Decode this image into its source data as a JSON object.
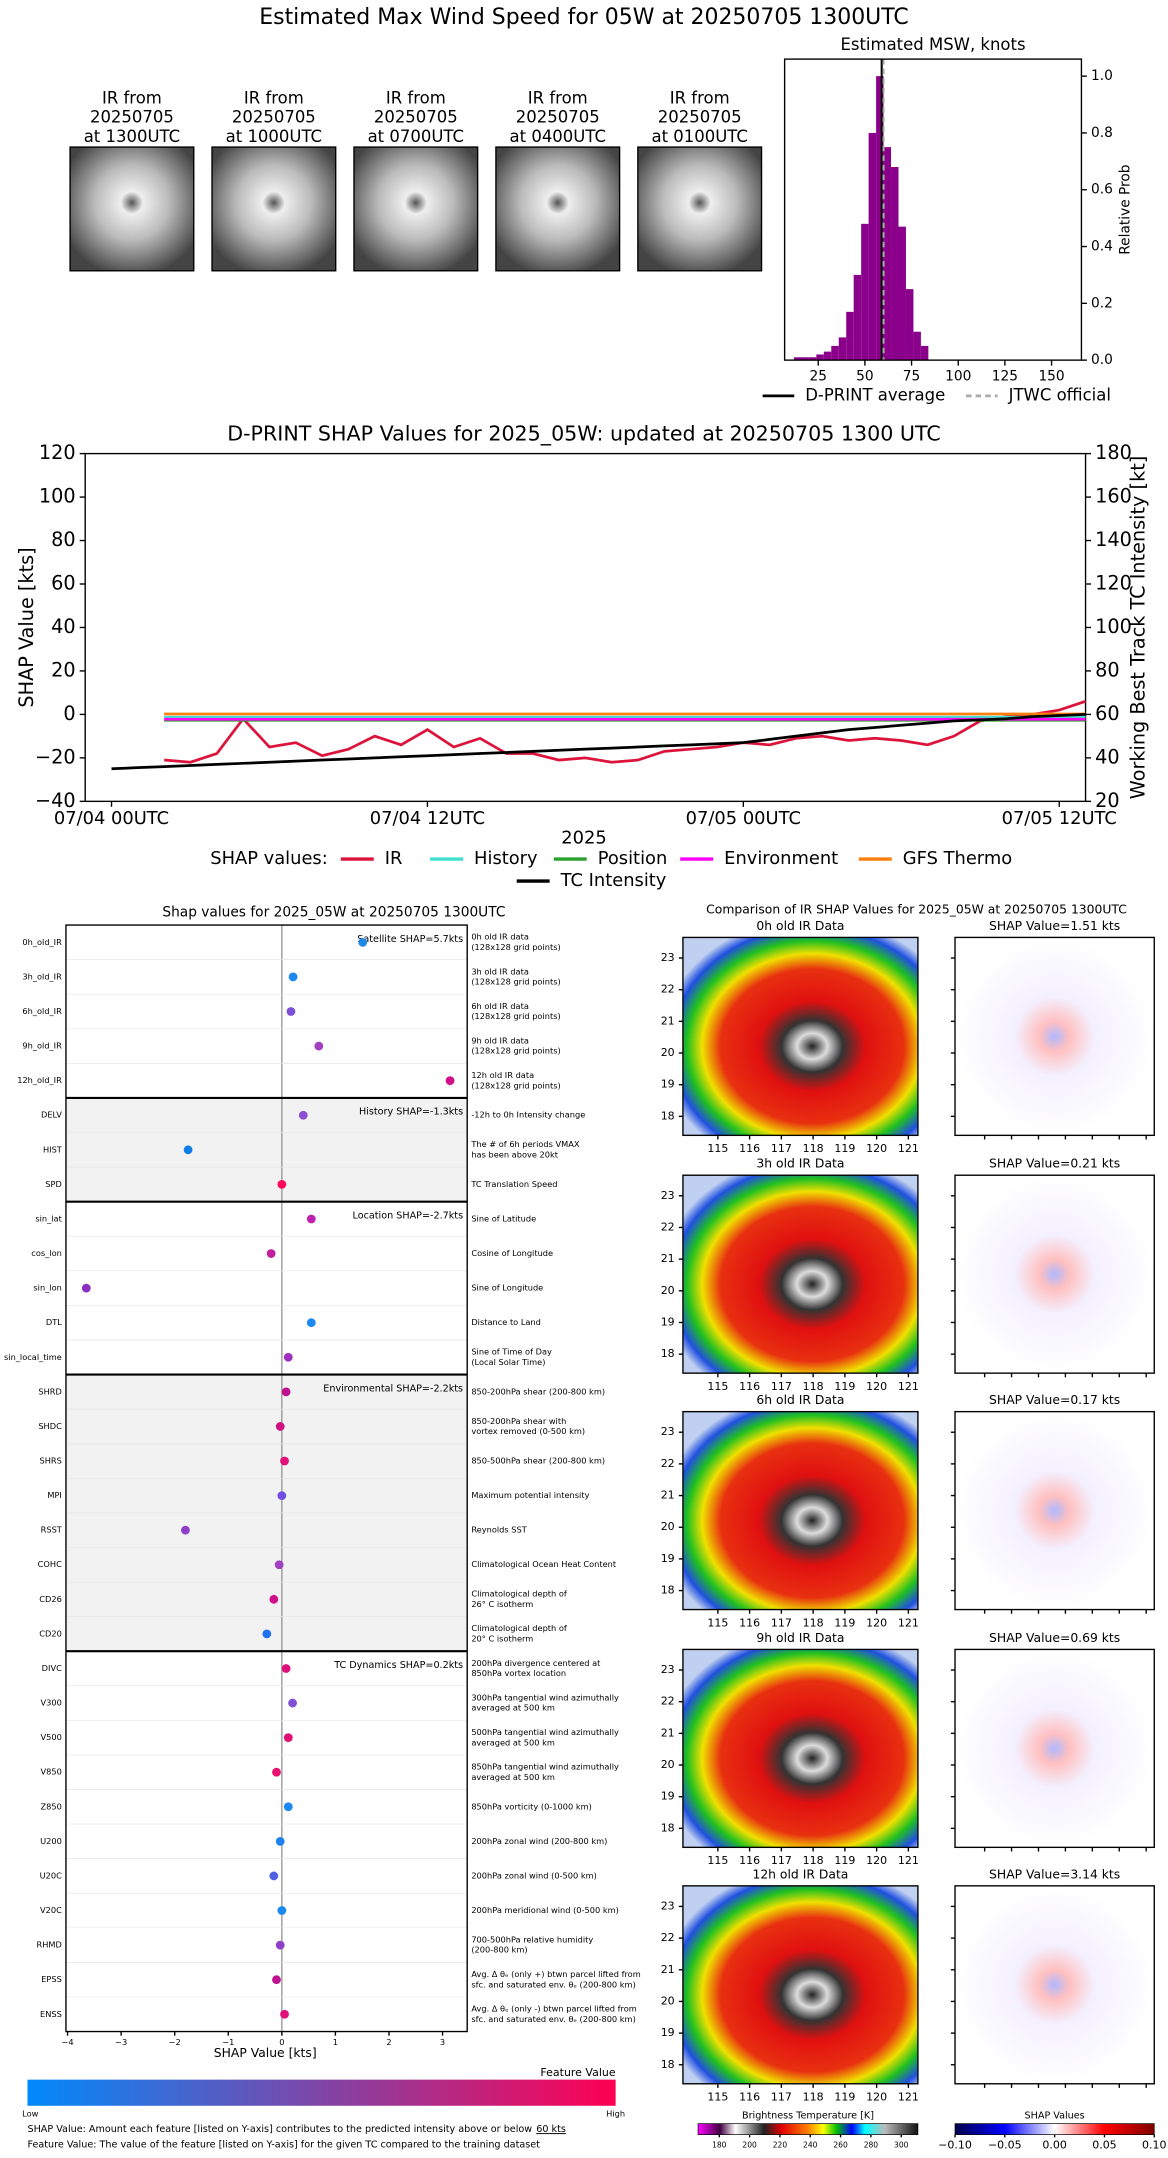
{
  "title": "Estimated Max Wind Speed for 05W at 20250705 1300UTC",
  "ir_thumbnails": [
    [
      "IR from",
      "20250705",
      "at 1300UTC"
    ],
    [
      "IR from",
      "20250705",
      "at 1000UTC"
    ],
    [
      "IR from",
      "20250705",
      "at 0700UTC"
    ],
    [
      "IR from",
      "20250705",
      "at 0400UTC"
    ],
    [
      "IR from",
      "20250705",
      "at 0100UTC"
    ]
  ],
  "chart_data": [
    {
      "type": "histogram",
      "title": "Estimated MSW, knots",
      "bins": [
        12,
        16,
        20,
        24,
        28,
        32,
        36,
        40,
        44,
        48,
        52,
        56,
        60,
        64,
        68,
        72,
        76,
        80,
        84
      ],
      "values": [
        0.01,
        0.01,
        0.01,
        0.02,
        0.03,
        0.05,
        0.08,
        0.17,
        0.3,
        0.48,
        0.8,
        1.0,
        0.75,
        0.68,
        0.47,
        0.25,
        0.1,
        0.05
      ],
      "color": "#8b008b",
      "xlim": [
        7,
        166
      ],
      "xticks": [
        25,
        50,
        75,
        100,
        125,
        150
      ],
      "ylim": [
        0,
        1.06
      ],
      "yticks": [
        {
          "value": 0,
          "label": "0.0"
        },
        {
          "value": 0.2,
          "label": "0.2"
        },
        {
          "value": 0.4,
          "label": "0.4"
        },
        {
          "value": 0.6,
          "label": "0.6"
        },
        {
          "value": 0.8,
          "label": "0.8"
        },
        {
          "value": 1.0,
          "label": "1.0"
        }
      ],
      "ylabel": "Relative Prob",
      "lines": [
        {
          "name": "D-PRINT average",
          "value": 59,
          "color": "#000000",
          "style": "solid"
        },
        {
          "name": "JTWC official",
          "value": 60,
          "color": "#aaaaaa",
          "style": "dashed"
        }
      ]
    },
    {
      "type": "line",
      "title": "D-PRINT SHAP Values for 2025_05W: updated at 20250705 1300 UTC",
      "ylabel": "SHAP Value [kts]",
      "y2label": "Working Best Track TC Intensity [kt]",
      "xlabel": "2025",
      "legend_title": "SHAP values:",
      "x": [
        "07/04 00UTC",
        "07/04 01UTC",
        "07/04 02UTC",
        "07/04 03UTC",
        "07/04 04UTC",
        "07/04 05UTC",
        "07/04 06UTC",
        "07/04 07UTC",
        "07/04 08UTC",
        "07/04 09UTC",
        "07/04 10UTC",
        "07/04 11UTC",
        "07/04 12UTC",
        "07/04 13UTC",
        "07/04 14UTC",
        "07/04 15UTC",
        "07/04 16UTC",
        "07/04 17UTC",
        "07/04 18UTC",
        "07/04 19UTC",
        "07/04 20UTC",
        "07/04 21UTC",
        "07/04 22UTC",
        "07/04 23UTC",
        "07/05 00UTC",
        "07/05 01UTC",
        "07/05 02UTC",
        "07/05 03UTC",
        "07/05 04UTC",
        "07/05 05UTC",
        "07/05 06UTC",
        "07/05 07UTC",
        "07/05 08UTC",
        "07/05 09UTC",
        "07/05 10UTC",
        "07/05 11UTC",
        "07/05 12UTC",
        "07/05 13UTC"
      ],
      "xlim": [
        "07/03 23UTC",
        "07/05 13UTC"
      ],
      "xticks": [
        "07/04 00UTC",
        "07/04 12UTC",
        "07/05 00UTC",
        "07/05 12UTC"
      ],
      "ylim": [
        -40,
        120
      ],
      "yticks": [
        {
          "value": -40,
          "label": "−40"
        },
        {
          "value": -20,
          "label": "−20"
        },
        0,
        20,
        40,
        60,
        80,
        100,
        120
      ],
      "y2lim": [
        20,
        180
      ],
      "y2ticks": [
        20,
        40,
        60,
        80,
        100,
        120,
        140,
        160,
        180
      ],
      "series": [
        {
          "name": "IR",
          "color": "#dc143c",
          "values": [
            null,
            null,
            -21,
            -22,
            -18,
            -2,
            -15,
            -13,
            -19,
            -16,
            -10,
            -14,
            -7,
            -15,
            -11,
            -18,
            -18,
            -21,
            -20,
            -22,
            -21,
            -17,
            -16,
            -15,
            -13,
            -14,
            -11,
            -10,
            -12,
            -11,
            -12,
            -14,
            -10,
            -3,
            -1,
            0,
            2,
            6
          ]
        },
        {
          "name": "History",
          "color": "#40e0d0",
          "values": [
            null,
            null,
            -1.3,
            -1.3,
            -1.3,
            -1.3,
            -1.3,
            -1.3,
            -1.3,
            -1.3,
            -1.3,
            -1.3,
            -1.3,
            -1.3,
            -1.3,
            -1.3,
            -1.3,
            -1.3,
            -1.3,
            -1.3,
            -1.3,
            -1.3,
            -1.3,
            -1.3,
            -1.3,
            -1.3,
            -1.3,
            -1.3,
            -1.3,
            -1.3,
            -1.3,
            -1.3,
            -1.3,
            -1.3,
            -1.3,
            -1.3,
            -1.3,
            -1.3
          ]
        },
        {
          "name": "Position",
          "color": "#2ca02c",
          "values": [
            null,
            null,
            -2.7,
            -2.7,
            -2.7,
            -2.7,
            -2.7,
            -2.7,
            -2.7,
            -2.7,
            -2.7,
            -2.7,
            -2.7,
            -2.7,
            -2.7,
            -2.7,
            -2.7,
            -2.7,
            -2.7,
            -2.7,
            -2.7,
            -2.7,
            -2.7,
            -2.7,
            -2.7,
            -2.7,
            -2.7,
            -2.7,
            -2.7,
            -2.7,
            -2.7,
            -2.7,
            -2.7,
            -2.7,
            -2.7,
            -2.7,
            -2.7,
            -2.7
          ]
        },
        {
          "name": "Environment",
          "color": "#ff00ff",
          "values": [
            null,
            null,
            -2.2,
            -2.2,
            -2.2,
            -2.2,
            -2.2,
            -2.2,
            -2.2,
            -2.2,
            -2.2,
            -2.2,
            -2.2,
            -2.2,
            -2.2,
            -2.2,
            -2.2,
            -2.2,
            -2.2,
            -2.2,
            -2.2,
            -2.2,
            -2.2,
            -2.2,
            -2.2,
            -2.2,
            -2.2,
            -2.2,
            -2.2,
            -2.2,
            -2.2,
            -2.2,
            -2.2,
            -2.2,
            -2.2,
            -2.2,
            -2.2,
            -2.2
          ]
        },
        {
          "name": "GFS Thermo",
          "color": "#ff7f0e",
          "values": [
            null,
            null,
            0.2,
            0.2,
            0.2,
            0.2,
            0.2,
            0.2,
            0.2,
            0.2,
            0.2,
            0.2,
            0.2,
            0.2,
            0.2,
            0.2,
            0.2,
            0.2,
            0.2,
            0.2,
            0.2,
            0.2,
            0.2,
            0.2,
            0.2,
            0.2,
            0.2,
            0.2,
            0.2,
            0.2,
            0.2,
            0.2,
            0.2,
            0.2,
            0.2,
            0.2,
            0.2,
            0.2
          ]
        },
        {
          "name": "TC Intensity",
          "color": "#000000",
          "axis": "y2",
          "values": [
            35,
            35.5,
            36,
            36.5,
            37,
            37.5,
            38,
            38.5,
            39,
            39.5,
            40,
            40.5,
            41,
            41.5,
            42,
            42.5,
            43,
            43.5,
            44,
            44.5,
            45,
            45.5,
            46,
            46.5,
            47,
            48.5,
            50,
            51.5,
            53,
            54,
            55,
            56,
            57,
            57.5,
            58,
            59,
            59.5,
            60
          ]
        }
      ]
    },
    {
      "type": "dot",
      "title": "Shap values for 2025_05W at 20250705 1300UTC",
      "xlabel": "SHAP Value [kts]",
      "xlim": [
        -4.03,
        3.46
      ],
      "xticks": [
        {
          "value": -4,
          "label": "−4"
        },
        {
          "value": -3,
          "label": "−3"
        },
        {
          "value": -2,
          "label": "−2"
        },
        {
          "value": -1,
          "label": "−1"
        },
        0,
        1,
        2,
        3
      ],
      "groups": [
        {
          "label": "Satellite SHAP=5.7kts",
          "features": [
            {
              "name": "0h_old_IR",
              "value": 1.51,
              "color": "#1e88e5",
              "description": [
                "0h old IR data",
                "(128x128 grid points)"
              ]
            },
            {
              "name": "3h_old_IR",
              "value": 0.21,
              "color": "#1a8af0",
              "description": [
                "3h old IR data",
                "(128x128 grid points)"
              ]
            },
            {
              "name": "6h_old_IR",
              "value": 0.17,
              "color": "#7b4fd6",
              "description": [
                "6h old IR data",
                "(128x128 grid points)"
              ]
            },
            {
              "name": "9h_old_IR",
              "value": 0.69,
              "color": "#a040c0",
              "description": [
                "9h old IR data",
                "(128x128 grid points)"
              ]
            },
            {
              "name": "12h_old_IR",
              "value": 3.14,
              "color": "#d0108a",
              "description": [
                "12h old IR data",
                "(128x128 grid points)"
              ]
            }
          ]
        },
        {
          "label": "History SHAP=-1.3kts",
          "features": [
            {
              "name": "DELV",
              "value": 0.4,
              "color": "#8a50d0",
              "description": [
                "-12h to 0h Intensity change"
              ]
            },
            {
              "name": "HIST",
              "value": -1.75,
              "color": "#1080e8",
              "description": [
                "The # of 6h periods VMAX",
                "has been above 20kt"
              ]
            },
            {
              "name": "SPD",
              "value": 0.0,
              "color": "#ff0a5a",
              "description": [
                "TC Translation Speed"
              ]
            }
          ]
        },
        {
          "label": "Location SHAP=-2.7kts",
          "features": [
            {
              "name": "sin_lat",
              "value": 0.55,
              "color": "#c020b0",
              "description": [
                "Sine of Latitude"
              ]
            },
            {
              "name": "cos_lon",
              "value": -0.2,
              "color": "#c020a0",
              "description": [
                "Cosine of Longitude"
              ]
            },
            {
              "name": "sin_lon",
              "value": -3.65,
              "color": "#8a30c0",
              "description": [
                "Sine of Longitude"
              ]
            },
            {
              "name": "DTL",
              "value": 0.55,
              "color": "#1a8af0",
              "description": [
                "Distance to Land"
              ]
            },
            {
              "name": "sin_local_time",
              "value": 0.12,
              "color": "#a030c0",
              "description": [
                "Sine of Time of Day",
                "(Local Solar Time)"
              ]
            }
          ]
        },
        {
          "label": "Environmental SHAP=-2.2kts",
          "features": [
            {
              "name": "SHRD",
              "value": 0.08,
              "color": "#c01090",
              "description": [
                "850-200hPa shear (200-800 km)"
              ]
            },
            {
              "name": "SHDC",
              "value": -0.03,
              "color": "#d01080",
              "description": [
                "850-200hPa shear with",
                "vortex removed (0-500 km)"
              ]
            },
            {
              "name": "SHRS",
              "value": 0.05,
              "color": "#e0107a",
              "description": [
                "850-500hPa shear (200-800 km)"
              ]
            },
            {
              "name": "MPI",
              "value": 0.0,
              "color": "#7050e0",
              "description": [
                "Maximum potential intensity"
              ]
            },
            {
              "name": "RSST",
              "value": -1.8,
              "color": "#9040c8",
              "description": [
                "Reynolds SST"
              ]
            },
            {
              "name": "COHC",
              "value": -0.05,
              "color": "#a040c0",
              "description": [
                "Climatological Ocean Heat Content"
              ]
            },
            {
              "name": "CD26",
              "value": -0.15,
              "color": "#d0108a",
              "description": [
                "Climatological depth of",
                "26° C isotherm"
              ]
            },
            {
              "name": "CD20",
              "value": -0.28,
              "color": "#2070f0",
              "description": [
                "Climatological depth of",
                "20° C isotherm"
              ]
            }
          ]
        },
        {
          "label": "TC Dynamics SHAP=0.2kts",
          "features": [
            {
              "name": "DIVC",
              "value": 0.08,
              "color": "#e0107a",
              "description": [
                "200hPa divergence centered at",
                "850hPa vortex location"
              ]
            },
            {
              "name": "V300",
              "value": 0.2,
              "color": "#8050d8",
              "description": [
                "300hPa tangential wind azimuthally",
                "averaged at 500 km"
              ]
            },
            {
              "name": "V500",
              "value": 0.12,
              "color": "#e01070",
              "description": [
                "500hPa tangential wind azimuthally",
                "averaged at 500 km"
              ]
            },
            {
              "name": "V850",
              "value": -0.1,
              "color": "#e8106e",
              "description": [
                "850hPa tangential wind azimuthally",
                "averaged at 500 km"
              ]
            },
            {
              "name": "Z850",
              "value": 0.12,
              "color": "#1a8af0",
              "description": [
                "850hPa vorticity (0-1000 km)"
              ]
            },
            {
              "name": "U200",
              "value": -0.03,
              "color": "#2080f0",
              "description": [
                "200hPa zonal wind (200-800 km)"
              ]
            },
            {
              "name": "U20C",
              "value": -0.15,
              "color": "#5060e0",
              "description": [
                "200hPa zonal wind (0-500 km)"
              ]
            },
            {
              "name": "V20C",
              "value": 0.0,
              "color": "#1a8af0",
              "description": [
                "200hPa meridional wind (0-500 km)"
              ]
            },
            {
              "name": "RHMD",
              "value": -0.03,
              "color": "#9040c8",
              "description": [
                "700-500hPa relative humidity",
                "(200-800 km)"
              ]
            },
            {
              "name": "EPSS",
              "value": -0.1,
              "color": "#c01090",
              "description": [
                "Avg. Δ θₑ (only +) btwn parcel lifted from",
                "sfc. and saturated env. θₑ (200-800 km)"
              ]
            },
            {
              "name": "ENSS",
              "value": 0.05,
              "color": "#e0107a",
              "description": [
                "Avg. Δ θₑ (only -) btwn parcel lifted from",
                "sfc. and saturated env. θₑ (200-800 km)"
              ]
            }
          ]
        }
      ],
      "colorbar": {
        "title": "Feature Value",
        "low": "Low",
        "high": "High",
        "colors": [
          "#008afc",
          "#ff0052"
        ]
      },
      "footnotes": [
        {
          "text": "SHAP Value: Amount each feature [listed on Y-axis] contributes to the predicted intensity above or below",
          "underlined": "60 kts"
        },
        {
          "text": "Feature Value: The value of the feature [listed on Y-axis] for the given TC compared to the training dataset"
        }
      ]
    }
  ],
  "ir_comparison": {
    "title": "Comparison of IR SHAP Values for 2025_05W at 20250705 1300UTC",
    "panels": [
      {
        "title": "0h old IR Data",
        "shap_title": "SHAP Value=1.51 kts"
      },
      {
        "title": "3h old IR Data",
        "shap_title": "SHAP Value=0.21 kts"
      },
      {
        "title": "6h old IR Data",
        "shap_title": "SHAP Value=0.17 kts"
      },
      {
        "title": "9h old IR Data",
        "shap_title": "SHAP Value=0.69 kts"
      },
      {
        "title": "12h old IR Data",
        "shap_title": "SHAP Value=3.14 kts"
      }
    ],
    "lon_lim": [
      113.9,
      121.3
    ],
    "lon_ticks": [
      115,
      116,
      117,
      118,
      119,
      120,
      121
    ],
    "lat_lim": [
      17.4,
      23.65
    ],
    "lat_ticks": [
      18,
      19,
      20,
      21,
      22,
      23
    ],
    "bt_colorbar": {
      "title": "Brightness Temperature [K]",
      "lim": [
        166,
        311
      ],
      "ticks": [
        180,
        200,
        220,
        240,
        260,
        280,
        300
      ]
    },
    "shap_colorbar": {
      "title": "SHAP Values",
      "lim": [
        -0.1,
        0.1
      ],
      "ticks": [
        {
          "value": -0.1,
          "label": "−0.10"
        },
        {
          "value": -0.05,
          "label": "−0.05"
        },
        {
          "value": 0,
          "label": "0.00"
        },
        {
          "value": 0.05,
          "label": "0.05"
        },
        {
          "value": 0.1,
          "label": "0.10"
        }
      ]
    }
  }
}
